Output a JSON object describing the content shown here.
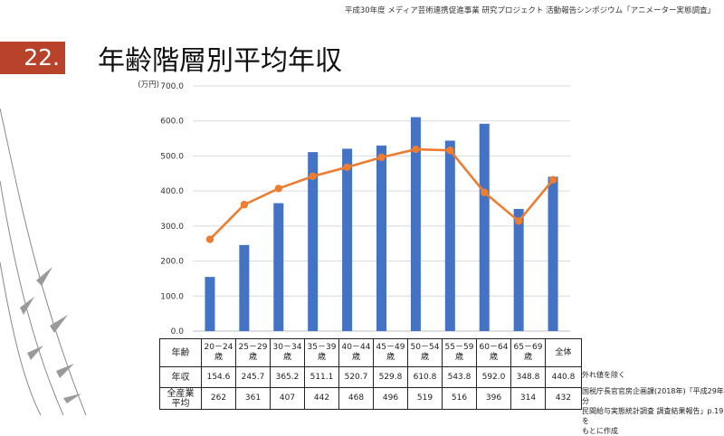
{
  "header_note": "平成30年度 メディア芸術連携促進事業 研究プロジェクト 活動報告シンポジウム「アニメーター実態調査」",
  "slide": {
    "number": "22.",
    "title": "年齢階層別平均年収"
  },
  "notes": {
    "outlier": "外れ値を除く",
    "source_lines": [
      "国税庁長官官房企画課(2018年)「平成29年分",
      "民間給与実態統計調査 調査結果報告」p.19を",
      "もとに作成"
    ]
  },
  "colors": {
    "bar": "#4472c4",
    "line": "#ed7d31",
    "accent": "#b8432a",
    "grid": "#d9d9d9"
  },
  "table": {
    "header_label": "年齢",
    "row_labels": [
      "年収",
      "全産業平均"
    ],
    "columns": [
      {
        "l1": "20－24",
        "l2": "歳",
        "salary": "154.6",
        "avg": "262"
      },
      {
        "l1": "25－29",
        "l2": "歳",
        "salary": "245.7",
        "avg": "361"
      },
      {
        "l1": "30－34",
        "l2": "歳",
        "salary": "365.2",
        "avg": "407"
      },
      {
        "l1": "35－39",
        "l2": "歳",
        "salary": "511.1",
        "avg": "442"
      },
      {
        "l1": "40－44",
        "l2": "歳",
        "salary": "520.7",
        "avg": "468"
      },
      {
        "l1": "45－49",
        "l2": "歳",
        "salary": "529.8",
        "avg": "496"
      },
      {
        "l1": "50－54",
        "l2": "歳",
        "salary": "610.8",
        "avg": "519"
      },
      {
        "l1": "55－59",
        "l2": "歳",
        "salary": "543.8",
        "avg": "516"
      },
      {
        "l1": "60－64",
        "l2": "歳",
        "salary": "592.0",
        "avg": "396"
      },
      {
        "l1": "65－69",
        "l2": "歳",
        "salary": "348.8",
        "avg": "314"
      },
      {
        "l1": "全体",
        "l2": "",
        "salary": "440.8",
        "avg": "432"
      }
    ]
  },
  "chart_data": {
    "type": "bar",
    "title": "年齢階層別平均年収",
    "ylabel": "(万円)",
    "ylim": [
      0,
      700
    ],
    "yticks": [
      "0.0",
      "100.0",
      "200.0",
      "300.0",
      "400.0",
      "500.0",
      "600.0",
      "700.0"
    ],
    "categories": [
      "20－24歳",
      "25－29歳",
      "30－34歳",
      "35－39歳",
      "40－44歳",
      "45－49歳",
      "50－54歳",
      "55－59歳",
      "60－64歳",
      "65－69歳",
      "全体"
    ],
    "series": [
      {
        "name": "年収",
        "type": "bar",
        "values": [
          154.6,
          245.7,
          365.2,
          511.1,
          520.7,
          529.8,
          610.8,
          543.8,
          592.0,
          348.8,
          440.8
        ]
      },
      {
        "name": "全産業平均",
        "type": "line",
        "values": [
          262,
          361,
          407,
          442,
          468,
          496,
          519,
          516,
          396,
          314,
          432
        ]
      }
    ],
    "grid": true,
    "legend": "none"
  }
}
